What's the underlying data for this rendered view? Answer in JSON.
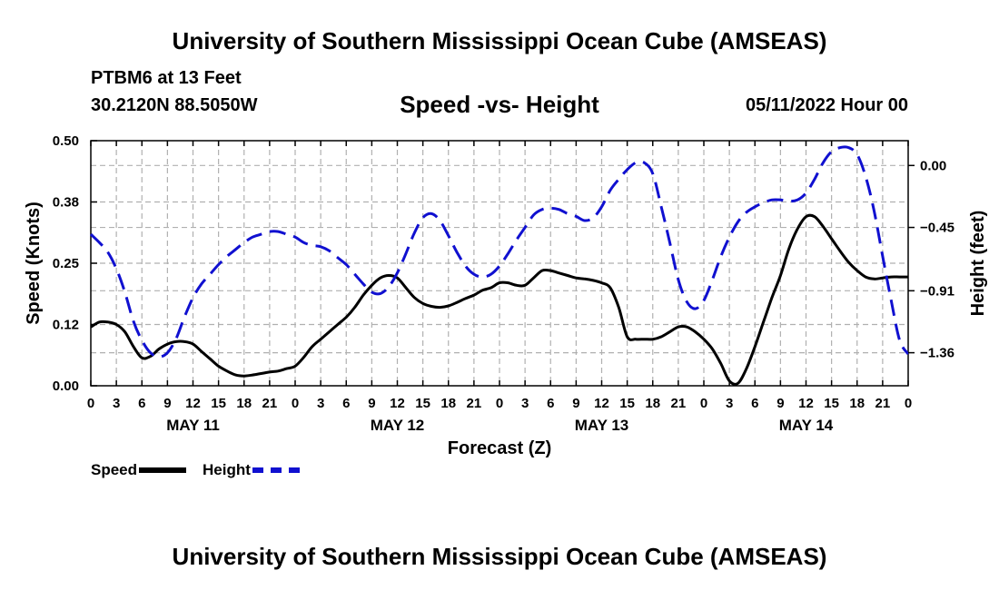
{
  "title": "University of Southern Mississippi Ocean Cube (AMSEAS)",
  "title_repeat": "University of Southern Mississippi Ocean Cube (AMSEAS)",
  "station": "PTBM6 at 13 Feet",
  "coords": "30.2120N  88.5050W",
  "subtitle": "Speed -vs- Height",
  "datetime": "05/11/2022 Hour 00",
  "colors": {
    "speed": "#000000",
    "height": "#1010d0",
    "grid": "#b0b0b0"
  },
  "legend": [
    {
      "label": "Speed",
      "color": "#000000",
      "style": "solid"
    },
    {
      "label": "Height",
      "color": "#1010d0",
      "style": "dashed"
    }
  ],
  "chart_data": {
    "type": "line",
    "xlabel": "Forecast (Z)",
    "ylabel_left": "Speed (Knots)",
    "ylabel_right": "Height (feet)",
    "xlim": [
      0,
      96
    ],
    "ylim_left": [
      0,
      0.5
    ],
    "ylim_right": [
      -1.6,
      0.18
    ],
    "yticks_left": [
      {
        "value": 0,
        "label": "0.00"
      },
      {
        "value": 0.125,
        "label": "0.12"
      },
      {
        "value": 0.25,
        "label": "0.25"
      },
      {
        "value": 0.375,
        "label": "0.38"
      },
      {
        "value": 0.5,
        "label": "0.50"
      }
    ],
    "yticks_right": [
      {
        "value": -1.36,
        "label": "−1.36"
      },
      {
        "value": -0.91,
        "label": "−0.91"
      },
      {
        "value": -0.45,
        "label": "−0.45"
      },
      {
        "value": 0.0,
        "label": "0.00"
      }
    ],
    "xticks": [
      {
        "value": 0,
        "label": "0"
      },
      {
        "value": 3,
        "label": "3"
      },
      {
        "value": 6,
        "label": "6"
      },
      {
        "value": 9,
        "label": "9"
      },
      {
        "value": 12,
        "label": "12"
      },
      {
        "value": 15,
        "label": "15"
      },
      {
        "value": 18,
        "label": "18"
      },
      {
        "value": 21,
        "label": "21"
      },
      {
        "value": 24,
        "label": "0"
      },
      {
        "value": 27,
        "label": "3"
      },
      {
        "value": 30,
        "label": "6"
      },
      {
        "value": 33,
        "label": "9"
      },
      {
        "value": 36,
        "label": "12"
      },
      {
        "value": 39,
        "label": "15"
      },
      {
        "value": 42,
        "label": "18"
      },
      {
        "value": 45,
        "label": "21"
      },
      {
        "value": 48,
        "label": "0"
      },
      {
        "value": 51,
        "label": "3"
      },
      {
        "value": 54,
        "label": "6"
      },
      {
        "value": 57,
        "label": "9"
      },
      {
        "value": 60,
        "label": "12"
      },
      {
        "value": 63,
        "label": "15"
      },
      {
        "value": 66,
        "label": "18"
      },
      {
        "value": 69,
        "label": "21"
      },
      {
        "value": 72,
        "label": "0"
      },
      {
        "value": 75,
        "label": "3"
      },
      {
        "value": 78,
        "label": "6"
      },
      {
        "value": 81,
        "label": "9"
      },
      {
        "value": 84,
        "label": "12"
      },
      {
        "value": 87,
        "label": "15"
      },
      {
        "value": 90,
        "label": "18"
      },
      {
        "value": 93,
        "label": "21"
      },
      {
        "value": 96,
        "label": "0"
      }
    ],
    "day_labels": [
      {
        "value": 12,
        "label": "MAY 11"
      },
      {
        "value": 36,
        "label": "MAY 12"
      },
      {
        "value": 60,
        "label": "MAY 13"
      },
      {
        "value": 84,
        "label": "MAY 14"
      }
    ],
    "series": [
      {
        "name": "Speed",
        "axis": "left",
        "style": "solid",
        "x": [
          0,
          1,
          2,
          3,
          4,
          5,
          6,
          7,
          8,
          9,
          10,
          11,
          12,
          13,
          14,
          15,
          16,
          17,
          18,
          19,
          20,
          21,
          22,
          23,
          24,
          25,
          26,
          27,
          28,
          29,
          30,
          31,
          32,
          33,
          34,
          35,
          36,
          37,
          38,
          39,
          40,
          41,
          42,
          43,
          44,
          45,
          46,
          47,
          48,
          49,
          50,
          51,
          52,
          53,
          54,
          55,
          56,
          57,
          58,
          59,
          60,
          61,
          62,
          63,
          64,
          65,
          66,
          67,
          68,
          69,
          70,
          71,
          72,
          73,
          74,
          75,
          76,
          77,
          78,
          79,
          80,
          81,
          82,
          83,
          84,
          85,
          86,
          87,
          88,
          89,
          90,
          91,
          92,
          93,
          94,
          95,
          96
        ],
        "values": [
          0.12,
          0.13,
          0.13,
          0.125,
          0.11,
          0.08,
          0.057,
          0.06,
          0.075,
          0.085,
          0.09,
          0.09,
          0.085,
          0.07,
          0.055,
          0.04,
          0.03,
          0.022,
          0.02,
          0.022,
          0.025,
          0.028,
          0.03,
          0.035,
          0.04,
          0.058,
          0.08,
          0.095,
          0.11,
          0.125,
          0.14,
          0.16,
          0.185,
          0.205,
          0.22,
          0.225,
          0.22,
          0.2,
          0.18,
          0.168,
          0.162,
          0.16,
          0.163,
          0.17,
          0.178,
          0.185,
          0.195,
          0.2,
          0.21,
          0.21,
          0.205,
          0.205,
          0.22,
          0.235,
          0.235,
          0.23,
          0.225,
          0.22,
          0.218,
          0.215,
          0.21,
          0.2,
          0.16,
          0.1,
          0.095,
          0.095,
          0.095,
          0.1,
          0.11,
          0.12,
          0.12,
          0.11,
          0.095,
          0.075,
          0.045,
          0.01,
          0.005,
          0.035,
          0.08,
          0.13,
          0.18,
          0.225,
          0.28,
          0.32,
          0.345,
          0.345,
          0.325,
          0.3,
          0.275,
          0.252,
          0.235,
          0.222,
          0.218,
          0.22,
          0.222,
          0.222,
          0.222
        ]
      },
      {
        "name": "Height",
        "axis": "right",
        "style": "dashed",
        "x": [
          0,
          1,
          2,
          3,
          4,
          5,
          6,
          7,
          8,
          9,
          10,
          11,
          12,
          13,
          14,
          15,
          16,
          17,
          18,
          19,
          20,
          21,
          22,
          23,
          24,
          25,
          26,
          27,
          28,
          29,
          30,
          31,
          32,
          33,
          34,
          35,
          36,
          37,
          38,
          39,
          40,
          41,
          42,
          43,
          44,
          45,
          46,
          47,
          48,
          49,
          50,
          51,
          52,
          53,
          54,
          55,
          56,
          57,
          58,
          59,
          60,
          61,
          62,
          63,
          64,
          65,
          66,
          67,
          68,
          69,
          70,
          71,
          72,
          73,
          74,
          75,
          76,
          77,
          78,
          79,
          80,
          81,
          82,
          83,
          84,
          85,
          86,
          87,
          88,
          89,
          90,
          91,
          92,
          93,
          94,
          95,
          96
        ],
        "values": [
          -0.5,
          -0.56,
          -0.63,
          -0.75,
          -0.92,
          -1.13,
          -1.27,
          -1.36,
          -1.39,
          -1.36,
          -1.26,
          -1.1,
          -0.96,
          -0.86,
          -0.79,
          -0.72,
          -0.66,
          -0.61,
          -0.56,
          -0.52,
          -0.5,
          -0.48,
          -0.48,
          -0.5,
          -0.52,
          -0.56,
          -0.58,
          -0.59,
          -0.62,
          -0.67,
          -0.72,
          -0.79,
          -0.86,
          -0.92,
          -0.93,
          -0.88,
          -0.78,
          -0.64,
          -0.49,
          -0.38,
          -0.35,
          -0.4,
          -0.51,
          -0.63,
          -0.73,
          -0.79,
          -0.81,
          -0.79,
          -0.73,
          -0.64,
          -0.54,
          -0.45,
          -0.36,
          -0.32,
          -0.31,
          -0.32,
          -0.35,
          -0.37,
          -0.4,
          -0.38,
          -0.3,
          -0.18,
          -0.1,
          -0.03,
          0.02,
          0.02,
          -0.06,
          -0.3,
          -0.56,
          -0.83,
          -0.99,
          -1.04,
          -0.98,
          -0.83,
          -0.66,
          -0.52,
          -0.41,
          -0.34,
          -0.3,
          -0.27,
          -0.25,
          -0.25,
          -0.26,
          -0.25,
          -0.2,
          -0.1,
          0.02,
          0.1,
          0.13,
          0.13,
          0.08,
          -0.08,
          -0.33,
          -0.66,
          -0.98,
          -1.27,
          -1.37
        ]
      }
    ]
  }
}
